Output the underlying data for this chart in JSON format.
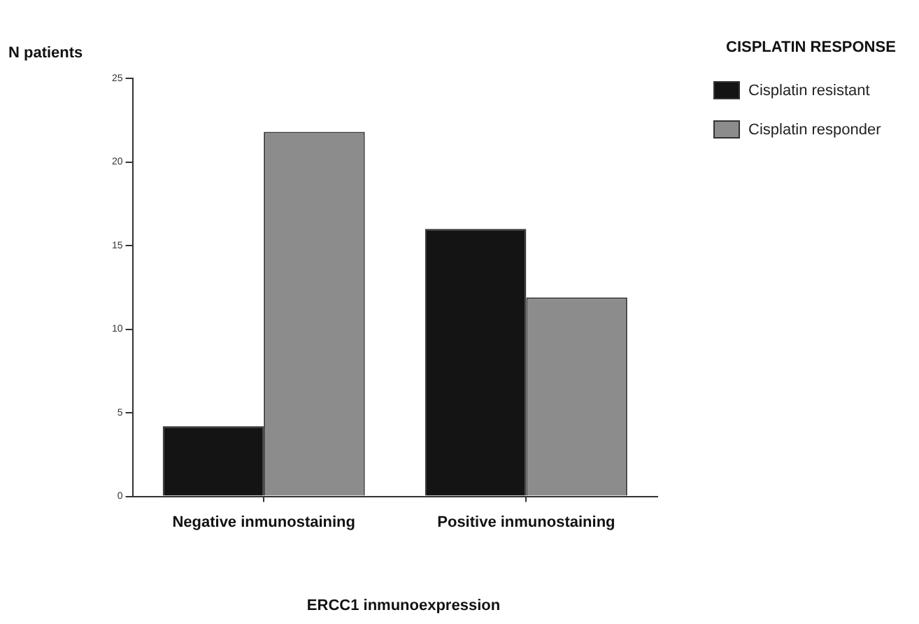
{
  "chart_data": {
    "type": "bar",
    "xlabel": "ERCC1 inmunoexpression",
    "ylabel": "N patients",
    "legend_title": "CISPLATIN RESPONSE",
    "legend": "right",
    "categories": [
      "Negative inmunostaining",
      "Positive inmunostaining"
    ],
    "series": [
      {
        "name": "Cisplatin resistant",
        "color": "#141414",
        "values": [
          4.2,
          16.0
        ]
      },
      {
        "name": "Cisplatin responder",
        "color": "#8c8c8c",
        "values": [
          21.8,
          11.9
        ]
      }
    ],
    "ylim": [
      0,
      25
    ],
    "yticks": [
      0,
      5,
      10,
      15,
      20,
      25
    ]
  }
}
